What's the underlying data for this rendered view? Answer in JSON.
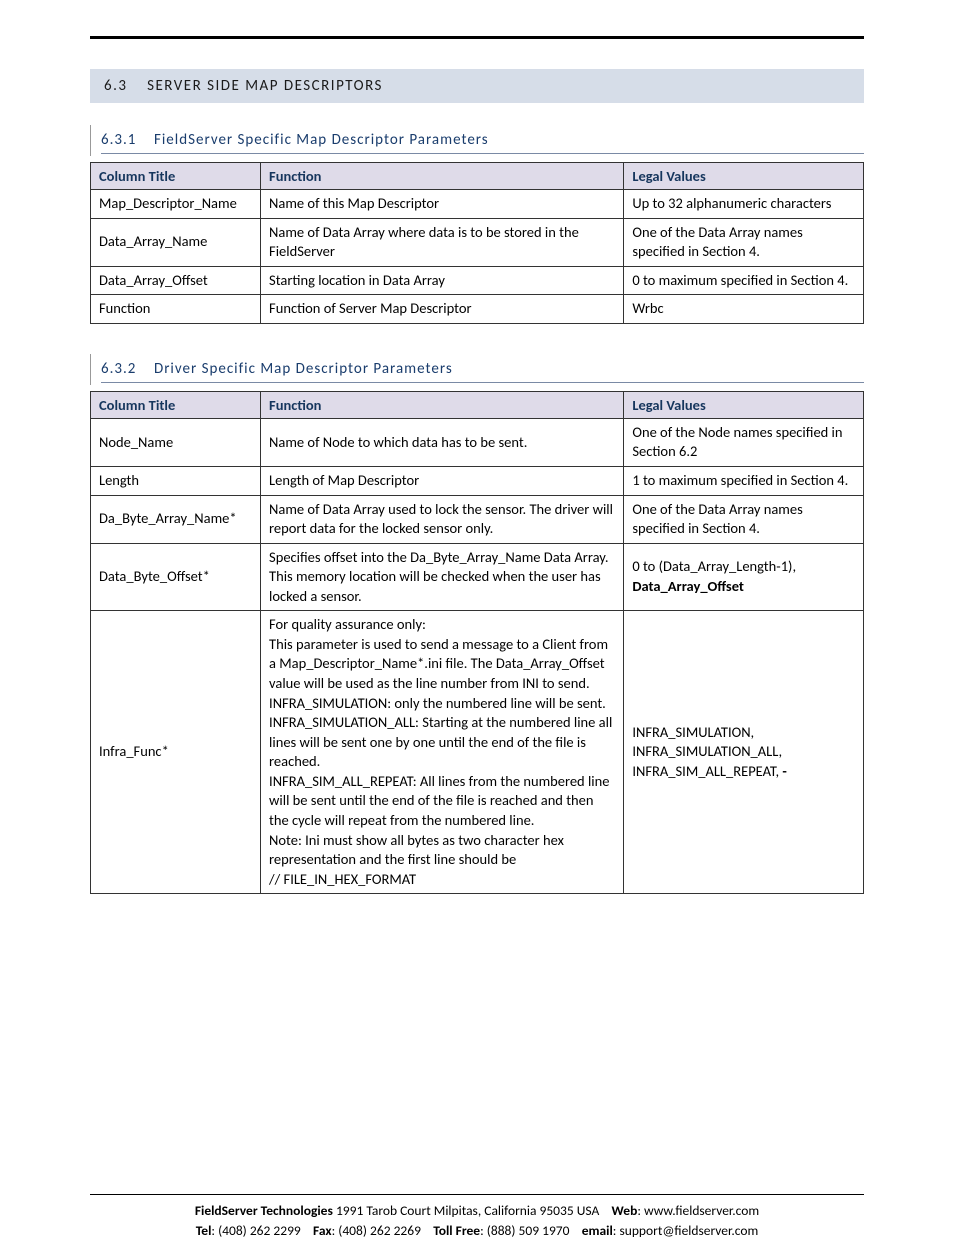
{
  "section": {
    "number": "6.3",
    "title": "SERVER SIDE MAP DESCRIPTORS"
  },
  "sub1": {
    "number": "6.3.1",
    "title": "FieldServer Specific Map Descriptor Parameters",
    "columns": [
      "Column Title",
      "Function",
      "Legal Values"
    ],
    "col_widths_pct": [
      22,
      47,
      31
    ],
    "header_bg": "#dfdbe9",
    "header_color": "#16365d",
    "border_color": "#333333",
    "rows": [
      {
        "c1": "Map_Descriptor_Name",
        "c2": "Name of this Map Descriptor",
        "c3": "Up to 32 alphanumeric characters"
      },
      {
        "c1": "Data_Array_Name",
        "c2": "Name of Data Array where data is to be stored in the FieldServer",
        "c3": "One of the Data Array names specified in Section 4."
      },
      {
        "c1": "Data_Array_Offset",
        "c2": "Starting location in Data Array",
        "c3": "0 to maximum specified in Section 4."
      },
      {
        "c1": "Function",
        "c2": "Function of Server Map Descriptor",
        "c3": "Wrbc"
      }
    ]
  },
  "sub2": {
    "number": "6.3.2",
    "title": "Driver Specific Map Descriptor Parameters",
    "columns": [
      "Column Title",
      "Function",
      "Legal Values"
    ],
    "col_widths_pct": [
      22,
      47,
      31
    ],
    "header_bg": "#dfdbe9",
    "header_color": "#16365d",
    "border_color": "#333333",
    "rows": [
      {
        "c1": "Node_Name",
        "c2": "Name of Node to which data has to be sent.",
        "c3": "One of the Node names specified in Section 6.2"
      },
      {
        "c1": "Length",
        "c2": "Length of Map Descriptor",
        "c3": "1 to maximum specified in Section 4."
      },
      {
        "c1": "Da_Byte_Array_Name*",
        "c2": "Name of Data Array used to lock the sensor.  The driver will report data for the locked sensor only.",
        "c3": "One of the Data Array names specified in Section 4."
      },
      {
        "c1": "Data_Byte_Offset*",
        "c2": "Specifies offset into the Da_Byte_Array_Name Data Array.  This memory location will be checked when the user has locked a sensor.",
        "c3_pre": "0 to (Data_Array_Length-1), ",
        "c3_bold": "Data_Array_Offset"
      },
      {
        "c1": "Infra_Func*",
        "c2": "For quality assurance only:\nThis parameter is used to send a message to a Client from a Map_Descriptor_Name*.ini file.  The Data_Array_Offset value will be used as the line number from INI to send.\nINFRA_SIMULATION: only the numbered line will be sent.\nINFRA_SIMULATION_ALL:  Starting at the numbered line all lines will be sent one by one until the end of the file is reached.\nINFRA_SIM_ALL_REPEAT:  All lines from the numbered line will be sent until the end of the file is reached and then the cycle will repeat from the numbered line.\nNote: Ini must show all bytes as two character hex representation and the first line should be\n// FILE_IN_HEX_FORMAT",
        "c3_pre": "INFRA_SIMULATION, INFRA_SIMULATION_ALL, INFRA_SIM_ALL_REPEAT, ",
        "c3_bold": "-"
      }
    ]
  },
  "footer": {
    "company": "FieldServer Technologies",
    "address": "1991 Tarob Court Milpitas, California 95035 USA",
    "web_label": "Web",
    "web": "www.fieldserver.com",
    "tel_label": "Tel",
    "tel": "(408) 262 2299",
    "fax_label": "Fax",
    "fax": "(408) 262 2269",
    "tollfree_label": "Toll Free",
    "tollfree": "(888) 509 1970",
    "email_label": "email",
    "email": "support@fieldserver.com"
  }
}
